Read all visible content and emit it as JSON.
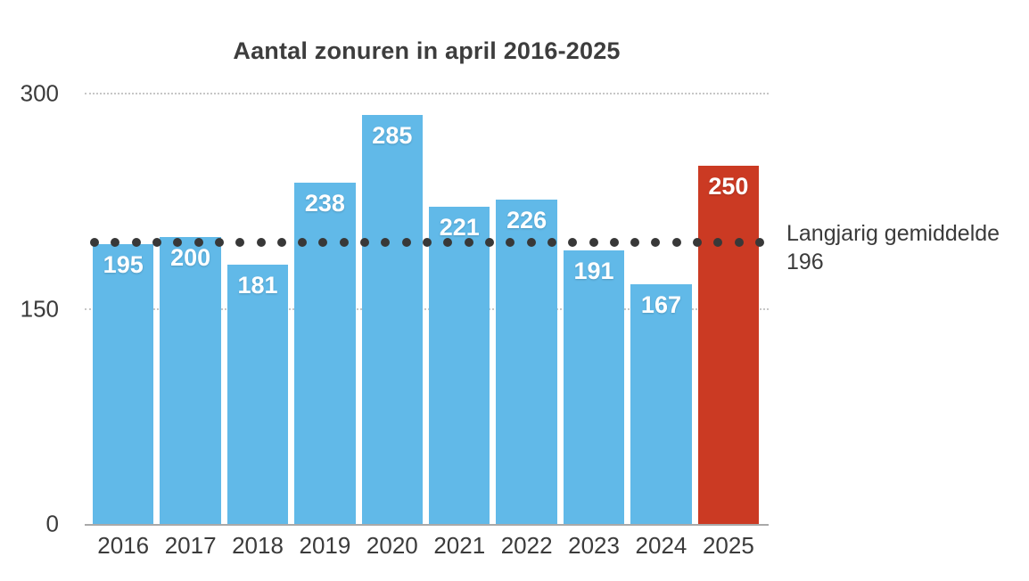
{
  "chart_data": {
    "type": "bar",
    "title": "Aantal zonuren in april 2016-2025",
    "categories": [
      "2016",
      "2017",
      "2018",
      "2019",
      "2020",
      "2021",
      "2022",
      "2023",
      "2024",
      "2025"
    ],
    "values": [
      195,
      200,
      181,
      238,
      285,
      221,
      226,
      191,
      167,
      250
    ],
    "highlight_category": "2025",
    "xlabel": "",
    "ylabel": "",
    "ylim": [
      0,
      300
    ],
    "yticks": [
      "0",
      "150",
      "300"
    ],
    "grid": "horizontal dotted lines at 150 and 300",
    "legend": "none",
    "reference_line": {
      "value": 196,
      "style": "dotted",
      "label": "Langjarig gemiddelde",
      "value_label": "196"
    },
    "colors": {
      "bar_default": "#61b9e8",
      "bar_highlight": "#cb3a23",
      "bar_value_text": "#ffffff",
      "axis_text": "#3b3b3b",
      "title_text": "#3d3d3d",
      "reference_dots": "#383838",
      "gridline": "#c6c6c6",
      "baseline": "#a9a9a9"
    }
  }
}
